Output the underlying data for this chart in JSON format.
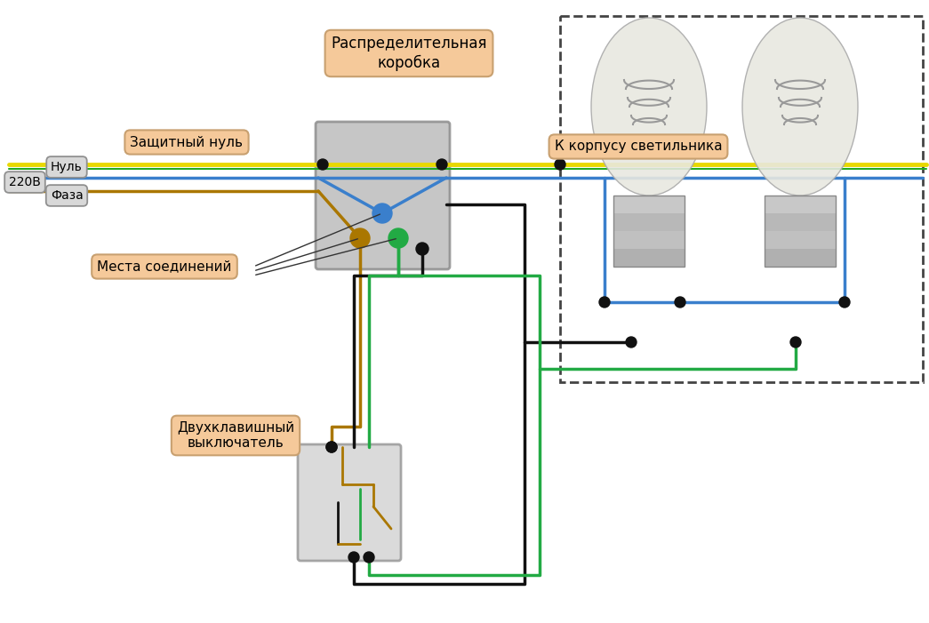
{
  "bg_color": "#ffffff",
  "label_box_color": "#f5c99a",
  "label_box_edge": "#c8a070",
  "label_small_color": "#d8d8d8",
  "label_small_edge": "#909090",
  "wire_yg": "#e8d800",
  "wire_yg_stripe": "#22aa22",
  "wire_blue": "#3a7fcc",
  "wire_brown": "#aa7700",
  "wire_black": "#111111",
  "wire_green": "#22aa44",
  "dot_color": "#111111",
  "jb_color": "#c0c0c0",
  "sw_color": "#d0d0d0",
  "texts": {
    "dist_box": "Распределительная\nкоробка",
    "zasch": "Защитный нуль",
    "korpus": "К корпусу светильника",
    "mesta": "Места соединений",
    "switch": "Двухклавишный\nвыключатель",
    "null": "Нуль",
    "220v": "220В",
    "faza": "Фаза"
  }
}
